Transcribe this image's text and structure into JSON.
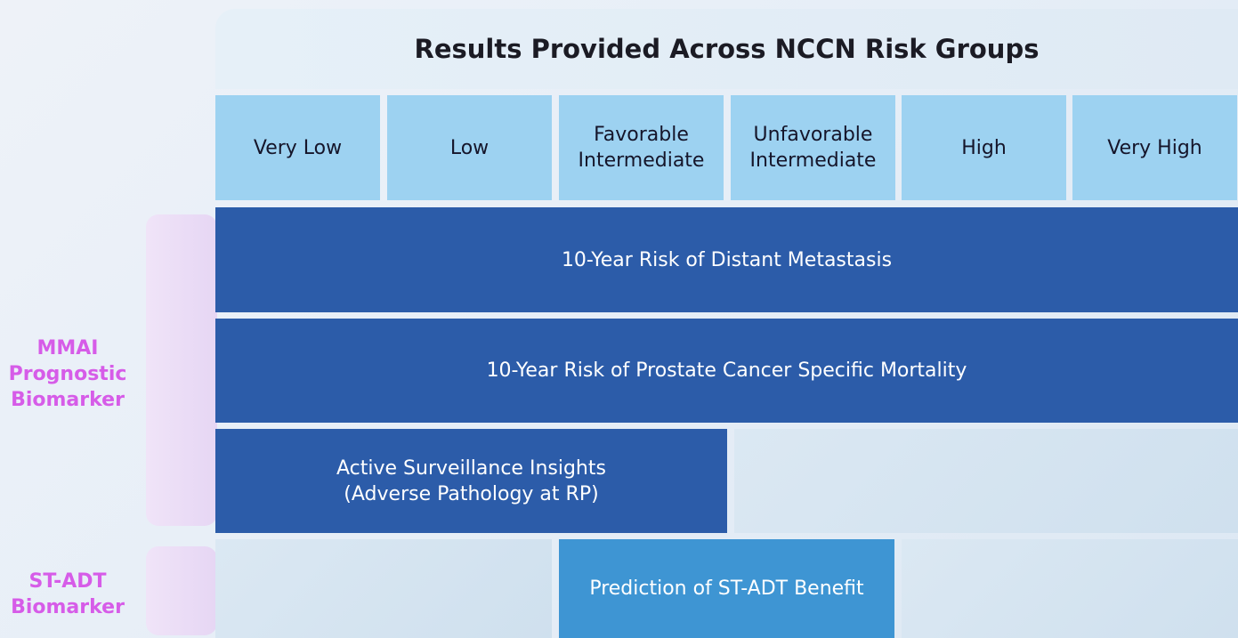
{
  "header": {
    "title": "Results Provided Across NCCN Risk Groups"
  },
  "risk_groups": [
    [
      "Very Low"
    ],
    [
      "Low"
    ],
    [
      "Favorable",
      "Intermediate"
    ],
    [
      "Unfavorable",
      "Intermediate"
    ],
    [
      "High"
    ],
    [
      "Very High"
    ]
  ],
  "rows": [
    [
      "10-Year Risk of Distant Metastasis"
    ],
    [
      "10-Year Risk of Prostate Cancer Specific Mortality"
    ],
    [
      "Active Surveillance Insights",
      "(Adverse Pathology at RP)"
    ],
    [
      "Prediction of ST-ADT Benefit"
    ]
  ],
  "side_labels": [
    [
      "MMAI",
      "Prognostic",
      "Biomarker"
    ],
    [
      "ST-ADT",
      "Biomarker"
    ]
  ]
}
